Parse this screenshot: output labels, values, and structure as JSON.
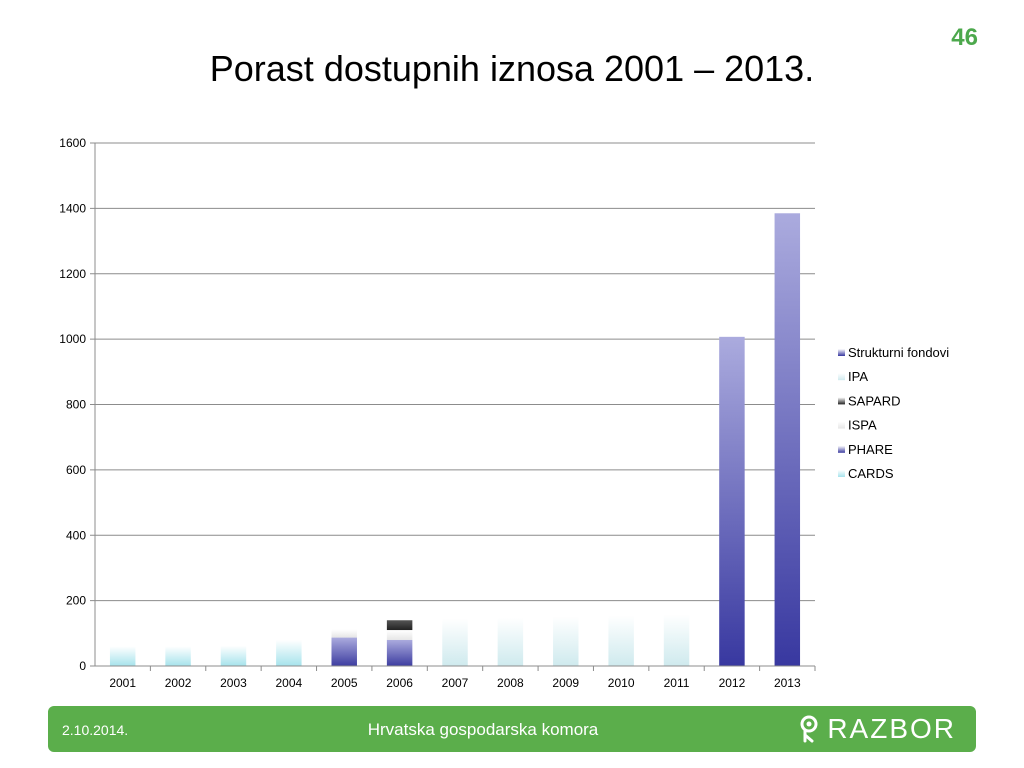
{
  "slide": {
    "number": "46",
    "number_color": "#4CA84C",
    "title": "Porast dostupnih iznosa 2001 – 2013."
  },
  "footer": {
    "date": "2.10.2014.",
    "organization": "Hrvatska gospodarska komora",
    "logo_text": "RAZBOR",
    "logo_icon": "razbor-logo-icon",
    "background": "#5BAE4B"
  },
  "chart_data": {
    "type": "bar",
    "stacked": true,
    "categories": [
      "2001",
      "2002",
      "2003",
      "2004",
      "2005",
      "2006",
      "2007",
      "2008",
      "2009",
      "2010",
      "2011",
      "2012",
      "2013"
    ],
    "ylim": [
      0,
      1600
    ],
    "yticks": [
      "0",
      "200",
      "400",
      "600",
      "800",
      "1000",
      "1200",
      "1400",
      "1600"
    ],
    "grid": true,
    "legend_position": "right",
    "series": [
      {
        "name": "CARDS",
        "color": "#A6E3EC",
        "values": [
          60,
          60,
          62,
          80,
          0,
          0,
          0,
          0,
          0,
          0,
          0,
          0,
          0
        ]
      },
      {
        "name": "PHARE",
        "color": "#3D3DA0",
        "values": [
          0,
          0,
          0,
          0,
          87,
          80,
          0,
          0,
          0,
          0,
          0,
          0,
          0
        ]
      },
      {
        "name": "ISPA",
        "color": "#E6E6E6",
        "values": [
          0,
          0,
          0,
          0,
          25,
          30,
          0,
          0,
          0,
          0,
          0,
          0,
          0
        ]
      },
      {
        "name": "SAPARD",
        "color": "#222222",
        "values": [
          0,
          0,
          0,
          0,
          0,
          30,
          0,
          0,
          0,
          0,
          0,
          0,
          0
        ]
      },
      {
        "name": "IPA",
        "color": "#CFEAEE",
        "values": [
          0,
          0,
          0,
          0,
          0,
          0,
          145,
          147,
          152,
          155,
          158,
          0,
          0
        ]
      },
      {
        "name": "Strukturni fondovi",
        "color": "#3838A0",
        "values": [
          0,
          0,
          0,
          0,
          0,
          0,
          0,
          0,
          0,
          0,
          0,
          1007,
          1385
        ]
      }
    ]
  }
}
